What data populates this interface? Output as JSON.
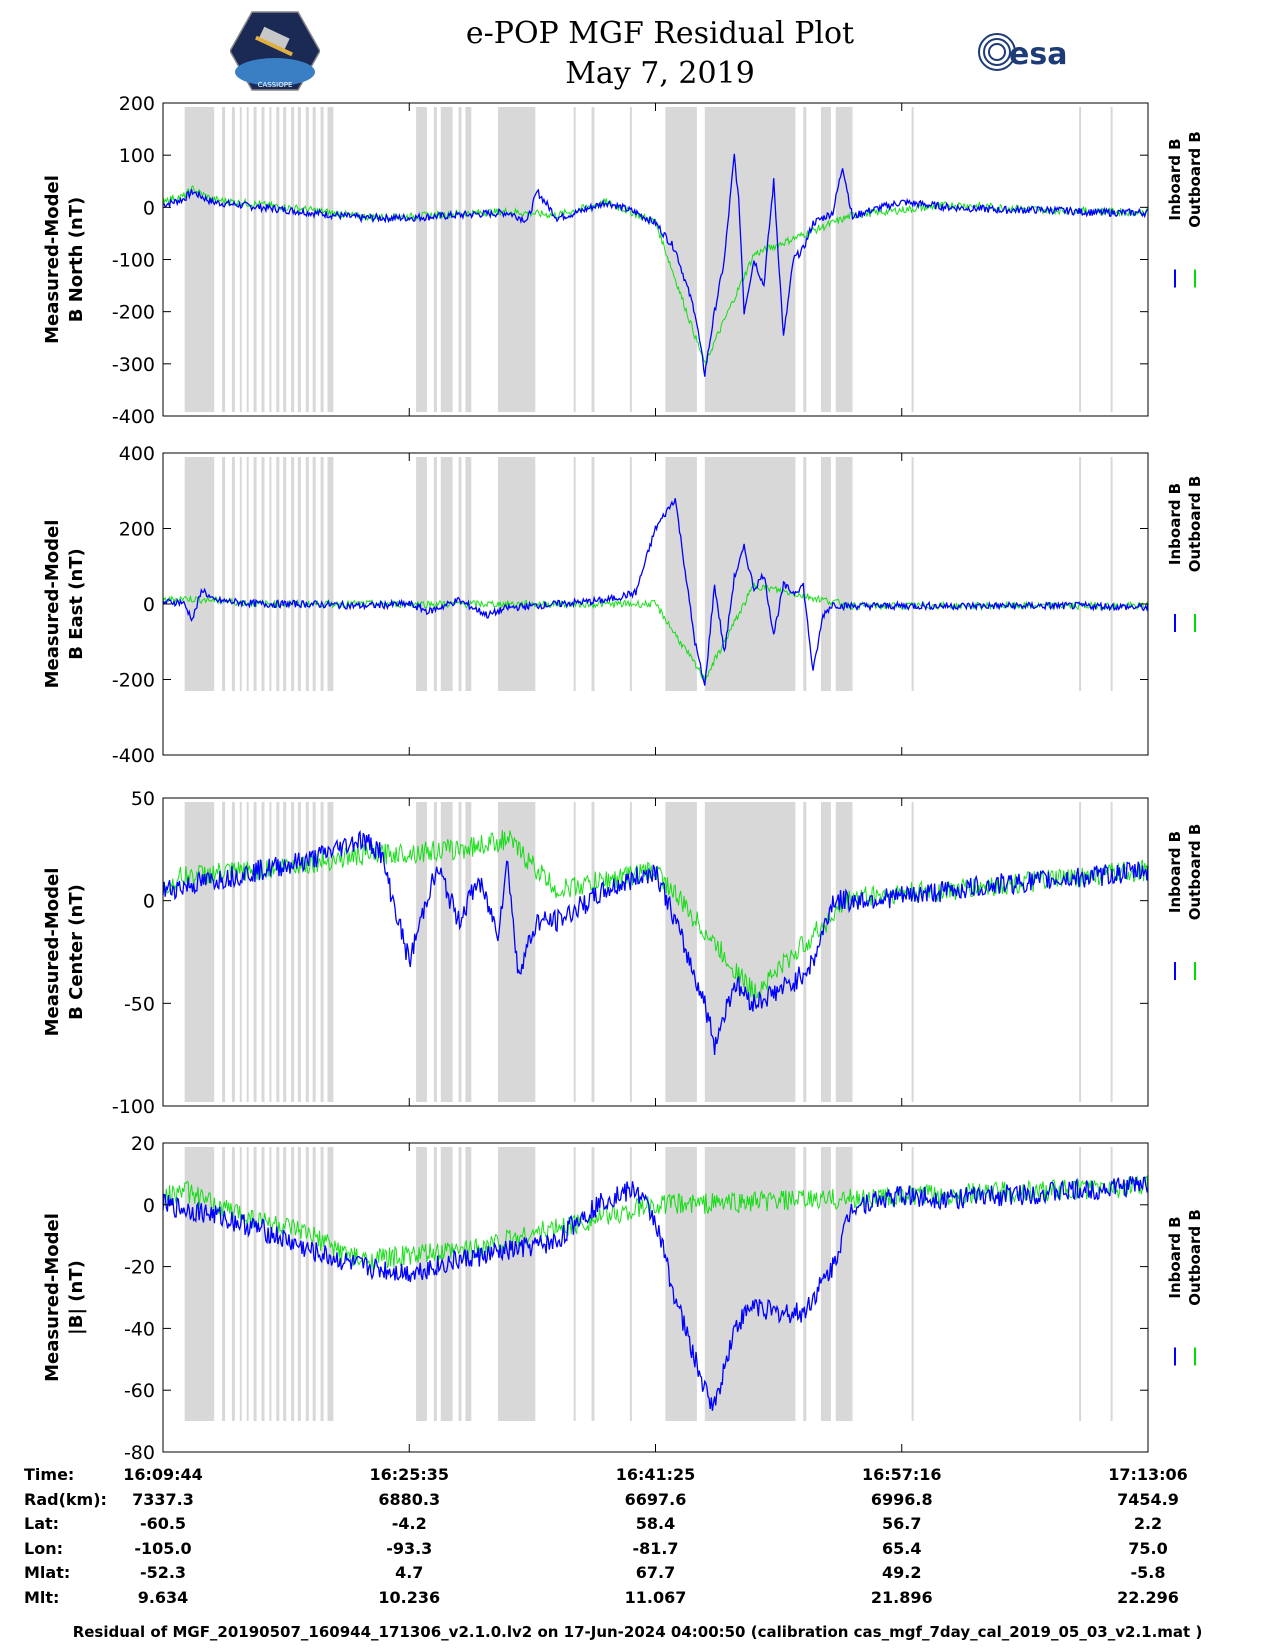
{
  "header": {
    "title_line1": "e-POP MGF Residual Plot",
    "title_line2": "May 7, 2019",
    "left_logo_text": "CASSIOPE",
    "right_logo_text": "esa"
  },
  "legend": {
    "inboard": "Inboard B",
    "outboard": "Outboard B"
  },
  "colors": {
    "inboard": "#0000ff",
    "outboard": "#00dd00",
    "shade": "#d8d8d8"
  },
  "chart_data": [
    {
      "type": "line",
      "ylabel": [
        "Measured-Model",
        "B North (nT)"
      ],
      "ylim": [
        -400,
        200
      ],
      "yticks": [
        200,
        100,
        0,
        -100,
        -200,
        -300,
        -400
      ],
      "series": [
        {
          "name": "Inboard B",
          "x": [
            0,
            0.02,
            0.03,
            0.05,
            0.1,
            0.15,
            0.2,
            0.25,
            0.3,
            0.35,
            0.37,
            0.38,
            0.4,
            0.42,
            0.45,
            0.48,
            0.5,
            0.52,
            0.54,
            0.55,
            0.56,
            0.57,
            0.58,
            0.585,
            0.59,
            0.6,
            0.61,
            0.62,
            0.63,
            0.64,
            0.65,
            0.66,
            0.67,
            0.68,
            0.69,
            0.7,
            0.71,
            0.72,
            0.73,
            0.74,
            0.75,
            0.8,
            0.85,
            0.9,
            0.95,
            1.0
          ],
          "y": [
            5,
            15,
            30,
            10,
            0,
            -10,
            -20,
            -20,
            -15,
            -10,
            -25,
            30,
            -20,
            -10,
            10,
            -10,
            -30,
            -80,
            -200,
            -320,
            -200,
            -100,
            100,
            0,
            -200,
            -100,
            -150,
            50,
            -250,
            -100,
            -80,
            -30,
            -20,
            -10,
            80,
            -20,
            -10,
            -5,
            0,
            5,
            10,
            0,
            -5,
            -5,
            -10,
            -10
          ]
        },
        {
          "name": "Outboard B",
          "x": [
            0,
            0.02,
            0.03,
            0.05,
            0.1,
            0.15,
            0.2,
            0.25,
            0.3,
            0.35,
            0.4,
            0.45,
            0.5,
            0.55,
            0.6,
            0.7,
            0.8,
            0.9,
            1.0
          ],
          "y": [
            15,
            20,
            35,
            15,
            5,
            -5,
            -18,
            -18,
            -12,
            -8,
            -15,
            10,
            -28,
            -300,
            -90,
            -15,
            5,
            -5,
            -10
          ]
        }
      ]
    },
    {
      "type": "line",
      "ylabel": [
        "Measured-Model",
        "B East (nT)"
      ],
      "ylim": [
        -400,
        400
      ],
      "yticks": [
        400,
        200,
        0,
        -200,
        -400
      ],
      "series": [
        {
          "name": "Inboard B",
          "x": [
            0,
            0.02,
            0.03,
            0.04,
            0.05,
            0.1,
            0.15,
            0.2,
            0.25,
            0.27,
            0.3,
            0.33,
            0.35,
            0.4,
            0.45,
            0.48,
            0.5,
            0.52,
            0.54,
            0.55,
            0.56,
            0.57,
            0.58,
            0.59,
            0.6,
            0.61,
            0.62,
            0.63,
            0.64,
            0.65,
            0.66,
            0.67,
            0.68,
            0.69,
            0.7,
            0.75,
            0.8,
            0.85,
            0.9,
            0.95,
            1.0
          ],
          "y": [
            5,
            5,
            -40,
            40,
            10,
            0,
            0,
            -5,
            0,
            -20,
            10,
            -30,
            -10,
            0,
            10,
            30,
            200,
            280,
            -100,
            -220,
            50,
            -130,
            70,
            150,
            40,
            80,
            -80,
            50,
            30,
            50,
            -180,
            -30,
            0,
            -5,
            -5,
            -5,
            -5,
            -5,
            -5,
            -5,
            -10
          ]
        },
        {
          "name": "Outboard B",
          "x": [
            0,
            0.02,
            0.05,
            0.1,
            0.5,
            0.55,
            0.6,
            0.7,
            0.8,
            1.0
          ],
          "y": [
            10,
            15,
            10,
            0,
            0,
            -200,
            50,
            -5,
            -5,
            -5
          ]
        }
      ]
    },
    {
      "type": "line",
      "ylabel": [
        "Measured-Model",
        "B Center (nT)"
      ],
      "ylim": [
        -100,
        50
      ],
      "yticks": [
        50,
        0,
        -50,
        -100
      ],
      "series": [
        {
          "name": "Inboard B",
          "x": [
            0,
            0.05,
            0.1,
            0.15,
            0.2,
            0.22,
            0.25,
            0.27,
            0.28,
            0.3,
            0.32,
            0.34,
            0.35,
            0.36,
            0.38,
            0.4,
            0.45,
            0.5,
            0.52,
            0.55,
            0.56,
            0.58,
            0.6,
            0.62,
            0.64,
            0.66,
            0.68,
            0.7,
            0.75,
            0.8,
            0.85,
            0.9,
            0.95,
            1.0
          ],
          "y": [
            5,
            10,
            15,
            20,
            30,
            25,
            -30,
            5,
            15,
            -10,
            10,
            -15,
            20,
            -35,
            -10,
            -10,
            5,
            15,
            -10,
            -50,
            -70,
            -40,
            -50,
            -45,
            -40,
            -30,
            0,
            0,
            2,
            5,
            8,
            10,
            12,
            15
          ]
        },
        {
          "name": "Outboard B",
          "x": [
            0,
            0.02,
            0.1,
            0.2,
            0.3,
            0.35,
            0.4,
            0.5,
            0.6,
            0.7,
            0.8,
            0.9,
            1.0
          ],
          "y": [
            5,
            12,
            15,
            22,
            25,
            30,
            5,
            15,
            -45,
            2,
            5,
            10,
            15
          ]
        }
      ]
    },
    {
      "type": "line",
      "ylabel": [
        "Measured-Model",
        "|B| (nT)"
      ],
      "ylim": [
        -80,
        20
      ],
      "yticks": [
        20,
        0,
        -20,
        -40,
        -60,
        -80
      ],
      "series": [
        {
          "name": "Inboard B",
          "x": [
            0,
            0.05,
            0.1,
            0.15,
            0.2,
            0.25,
            0.3,
            0.35,
            0.4,
            0.42,
            0.45,
            0.48,
            0.5,
            0.52,
            0.55,
            0.56,
            0.58,
            0.6,
            0.62,
            0.65,
            0.68,
            0.7,
            0.75,
            0.8,
            0.85,
            0.9,
            0.95,
            1.0
          ],
          "y": [
            0,
            -3,
            -8,
            -15,
            -20,
            -22,
            -18,
            -15,
            -12,
            -5,
            2,
            5,
            -5,
            -30,
            -60,
            -65,
            -40,
            -32,
            -35,
            -35,
            -20,
            0,
            3,
            2,
            3,
            4,
            5,
            7
          ]
        },
        {
          "name": "Outboard B",
          "x": [
            0,
            0.02,
            0.05,
            0.1,
            0.15,
            0.2,
            0.3,
            0.5,
            0.7,
            1.0
          ],
          "y": [
            2,
            5,
            0,
            -5,
            -10,
            -18,
            -15,
            0,
            2,
            6
          ]
        }
      ]
    }
  ],
  "shade_bands": [
    [
      0.022,
      0.052
    ],
    [
      0.06,
      0.063
    ],
    [
      0.07,
      0.073
    ],
    [
      0.078,
      0.08
    ],
    [
      0.085,
      0.087
    ],
    [
      0.092,
      0.095
    ],
    [
      0.1,
      0.103
    ],
    [
      0.108,
      0.11
    ],
    [
      0.115,
      0.118
    ],
    [
      0.122,
      0.125
    ],
    [
      0.13,
      0.133
    ],
    [
      0.137,
      0.14
    ],
    [
      0.145,
      0.148
    ],
    [
      0.152,
      0.155
    ],
    [
      0.16,
      0.163
    ],
    [
      0.167,
      0.173
    ],
    [
      0.257,
      0.268
    ],
    [
      0.275,
      0.278
    ],
    [
      0.282,
      0.294
    ],
    [
      0.3,
      0.303
    ],
    [
      0.307,
      0.313
    ],
    [
      0.34,
      0.378
    ],
    [
      0.417,
      0.419
    ],
    [
      0.435,
      0.438
    ],
    [
      0.474,
      0.476
    ],
    [
      0.51,
      0.542
    ],
    [
      0.55,
      0.642
    ],
    [
      0.65,
      0.653
    ],
    [
      0.668,
      0.678
    ],
    [
      0.683,
      0.7
    ],
    [
      0.76,
      0.762
    ],
    [
      0.93,
      0.932
    ],
    [
      0.962,
      0.964
    ]
  ],
  "time_axis": {
    "labels": [
      "Time:",
      "Rad(km):",
      "Lat:",
      "Lon:",
      "Mlat:",
      "Mlt:"
    ],
    "columns": [
      [
        "16:09:44",
        "7337.3",
        "-60.5",
        "-105.0",
        "-52.3",
        "9.634"
      ],
      [
        "16:25:35",
        "6880.3",
        "-4.2",
        "-93.3",
        "4.7",
        "10.236"
      ],
      [
        "16:41:25",
        "6697.6",
        "58.4",
        "-81.7",
        "67.7",
        "11.067"
      ],
      [
        "16:57:16",
        "6996.8",
        "56.7",
        "65.4",
        "49.2",
        "21.896"
      ],
      [
        "17:13:06",
        "7454.9",
        "2.2",
        "75.0",
        "-5.8",
        "22.296"
      ]
    ]
  },
  "footer": {
    "caption": "Residual of MGF_20190507_160944_171306_v2.1.0.lv2 on 17-Jun-2024 04:00:50 (calibration cas_mgf_7day_cal_2019_05_03_v2.1.mat )"
  }
}
